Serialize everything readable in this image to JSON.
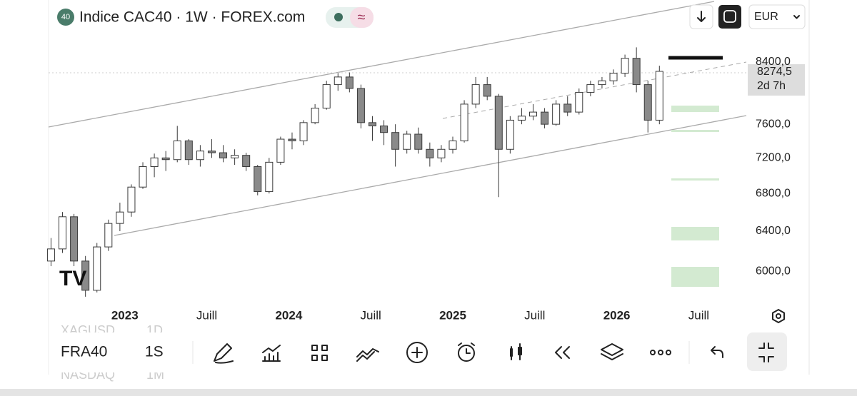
{
  "header": {
    "badge": "40",
    "title": "Indice CAC40 · 1W · FOREX.com",
    "indicator": "≈",
    "currency": "EUR"
  },
  "chart_data": {
    "type": "candlestick",
    "log_scale": true,
    "x": [
      2022.55,
      2022.62,
      2022.69,
      2022.76,
      2022.83,
      2022.9,
      2022.97,
      2023.04,
      2023.11,
      2023.18,
      2023.25,
      2023.32,
      2023.39,
      2023.46,
      2023.53,
      2023.6,
      2023.67,
      2023.74,
      2023.81,
      2023.88,
      2023.95,
      2024.02,
      2024.09,
      2024.16,
      2024.23,
      2024.3,
      2024.37,
      2024.44,
      2024.51,
      2024.58,
      2024.65,
      2024.72,
      2024.79,
      2024.86,
      2024.93,
      2025.0,
      2025.07,
      2025.14,
      2025.21,
      2025.28,
      2025.35,
      2025.42,
      2025.49,
      2025.56,
      2025.63,
      2025.7,
      2025.77,
      2025.84,
      2025.91,
      2025.98,
      2026.05,
      2026.12,
      2026.19,
      2026.26
    ],
    "open": [
      6100,
      6220,
      6550,
      6100,
      5820,
      6240,
      6480,
      6600,
      6870,
      7100,
      7200,
      7180,
      7400,
      7180,
      7280,
      7260,
      7200,
      7230,
      7100,
      6820,
      7150,
      7420,
      7400,
      7620,
      7800,
      8100,
      8200,
      8050,
      7620,
      7580,
      7500,
      7300,
      7480,
      7300,
      7200,
      7300,
      7400,
      7850,
      8100,
      7950,
      7300,
      7650,
      7700,
      7750,
      7600,
      7850,
      7750,
      8000,
      8100,
      8150,
      8250,
      8450,
      8100,
      7650
    ],
    "high": [
      6330,
      6600,
      6580,
      6150,
      6280,
      6520,
      6700,
      6900,
      7150,
      7250,
      7280,
      7580,
      7420,
      7350,
      7420,
      7350,
      7300,
      7260,
      7120,
      7200,
      7450,
      7500,
      7650,
      7850,
      8150,
      8250,
      8260,
      8100,
      7700,
      7650,
      7600,
      7520,
      7560,
      7380,
      7350,
      7450,
      7900,
      8200,
      8200,
      7980,
      7700,
      7800,
      7850,
      7800,
      7900,
      7950,
      8050,
      8150,
      8200,
      8300,
      8500,
      8600,
      8150,
      8350
    ],
    "low": [
      6050,
      6180,
      6050,
      5760,
      5800,
      6200,
      6400,
      6550,
      6850,
      6980,
      7050,
      7150,
      7120,
      7100,
      7200,
      7150,
      7120,
      7050,
      6780,
      6800,
      7120,
      7300,
      7350,
      7600,
      7780,
      8020,
      8000,
      7550,
      7400,
      7350,
      7100,
      7250,
      7250,
      7100,
      7150,
      7250,
      7380,
      7800,
      7900,
      6760,
      7250,
      7600,
      7650,
      7550,
      7580,
      7700,
      7720,
      7950,
      8050,
      8100,
      8200,
      8000,
      7500,
      7600
    ],
    "close": [
      6220,
      6550,
      6100,
      5820,
      6240,
      6480,
      6600,
      6870,
      7100,
      7200,
      7180,
      7400,
      7180,
      7280,
      7260,
      7200,
      7230,
      7100,
      6820,
      7150,
      7420,
      7400,
      7620,
      7800,
      8100,
      8200,
      8050,
      7620,
      7580,
      7500,
      7300,
      7480,
      7300,
      7200,
      7300,
      7400,
      7850,
      8100,
      7950,
      7300,
      7650,
      7700,
      7750,
      7600,
      7850,
      7750,
      8000,
      8100,
      8150,
      8250,
      8450,
      8100,
      7650,
      8274.5
    ],
    "xlim": [
      2022.535,
      2026.79
    ],
    "xticks": [
      {
        "value": 2023,
        "label": "2023"
      },
      {
        "value": 2023.5,
        "label": "Juill"
      },
      {
        "value": 2024,
        "label": "2024"
      },
      {
        "value": 2024.5,
        "label": "Juill"
      },
      {
        "value": 2025,
        "label": "2025"
      },
      {
        "value": 2025.5,
        "label": "Juill"
      },
      {
        "value": 2026,
        "label": "2026"
      },
      {
        "value": 2026.5,
        "label": "Juill"
      }
    ],
    "ylim": [
      5700,
      9280
    ],
    "yticks": [
      {
        "value": 6000,
        "label": "6000,0"
      },
      {
        "value": 6400,
        "label": "6400,0"
      },
      {
        "value": 6800,
        "label": "6800,0"
      },
      {
        "value": 7200,
        "label": "7200,0"
      },
      {
        "value": 7600,
        "label": "7600,0"
      },
      {
        "value": 8400,
        "label": "8400,0"
      }
    ],
    "last_price": {
      "value": 8274.5,
      "label": "8274,5"
    },
    "countdown": "2d 7h",
    "up_color": "#ffffff",
    "down_color": "#8a8a8a",
    "outline_color": "#3a3a3a"
  },
  "toolbar": {
    "symbol": "FRA40",
    "interval": "1S",
    "prev_symbol": "XAGUSD",
    "prev_interval": "1D",
    "next_symbol": "NASDAQ",
    "next_interval": "1M"
  }
}
